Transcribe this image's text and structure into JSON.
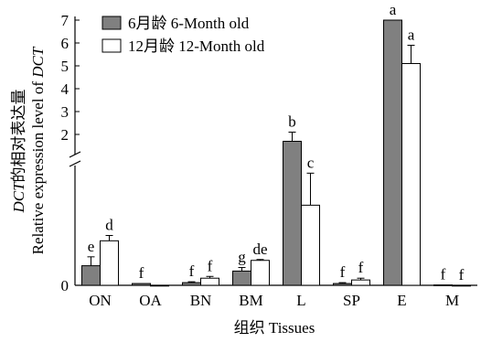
{
  "chart_data": {
    "type": "bar",
    "categories": [
      "ON",
      "OA",
      "BN",
      "BM",
      "L",
      "SP",
      "E",
      "M"
    ],
    "series": [
      {
        "name": "6月龄 6-Month old",
        "color": "#808080",
        "values": [
          0.11,
          0.01,
          0.015,
          0.08,
          1.7,
          0.01,
          7.0,
          0.002
        ],
        "errors": [
          0.05,
          0.0,
          0.005,
          0.02,
          0.4,
          0.005,
          0.0,
          0.0
        ],
        "labels": [
          "e",
          "f",
          "f",
          "g",
          "b",
          "f",
          "a",
          "f"
        ]
      },
      {
        "name": "12月龄 12-Month old",
        "color": "#ffffff",
        "values": [
          0.25,
          0.0,
          0.04,
          0.14,
          0.45,
          0.03,
          5.1,
          0.0
        ],
        "errors": [
          0.03,
          0.0,
          0.01,
          0.005,
          0.18,
          0.01,
          0.8,
          0.0
        ],
        "labels": [
          "d",
          "",
          "f",
          "de",
          "c",
          "f",
          "a",
          "f"
        ]
      }
    ],
    "xlabel": "组织 Tissues",
    "ylabel_line1": "DCT的相对表达量",
    "ylabel_line2": "Relative expression level of DCT",
    "y_ticks_lower": [
      0
    ],
    "y_ticks_upper": [
      2,
      3,
      4,
      5,
      6,
      7
    ],
    "ylim_lower": [
      0,
      0.75
    ],
    "ylim_upper": [
      1.4,
      7
    ],
    "axis_break": true,
    "legend_position": "top-left",
    "grid": false
  }
}
